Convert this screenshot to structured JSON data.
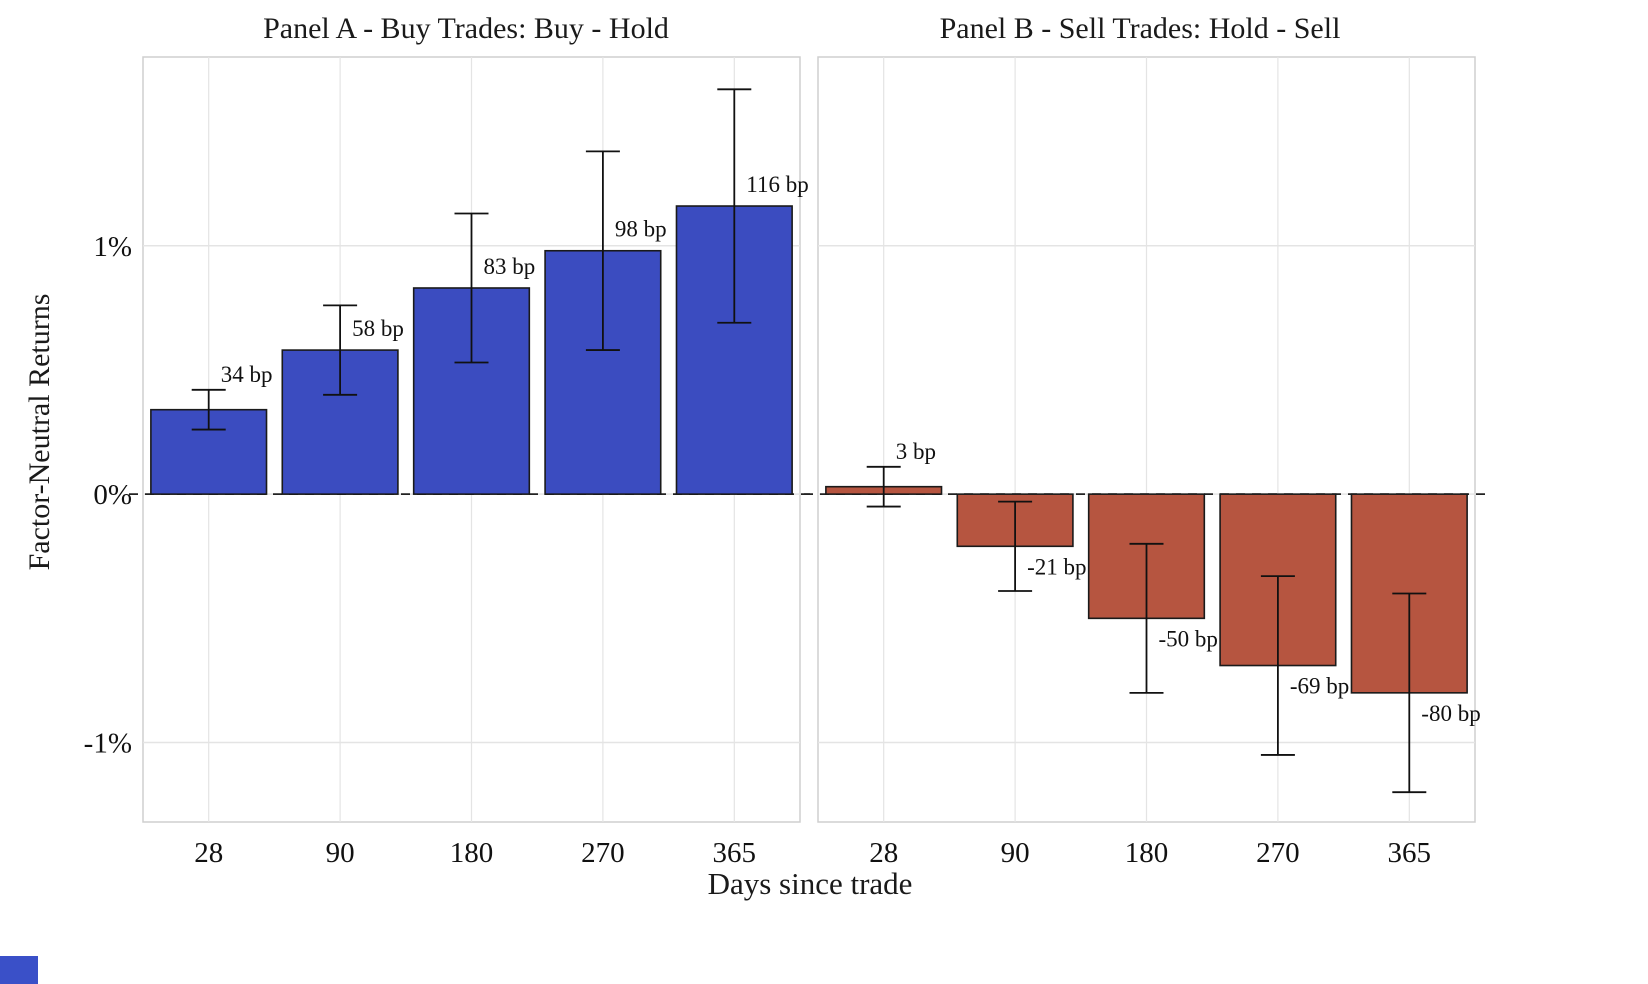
{
  "chart_data": {
    "type": "bar",
    "title": "",
    "xlabel": "Days since trade",
    "ylabel": "Factor-Neutral Returns",
    "ylim_bp": [
      -132,
      176
    ],
    "grid": true,
    "yticks": [
      {
        "value_bp": 100,
        "label": "1%"
      },
      {
        "value_bp": 0,
        "label": "0%"
      },
      {
        "value_bp": -100,
        "label": "-1%"
      }
    ],
    "categories": [
      "28",
      "90",
      "180",
      "270",
      "365"
    ],
    "panels": [
      {
        "title": "Panel A - Buy Trades: Buy - Hold",
        "color": "#3b4cc0",
        "categories": [
          "28",
          "90",
          "180",
          "270",
          "365"
        ],
        "values_bp": [
          34,
          58,
          83,
          98,
          116
        ],
        "error_low_bp": [
          26,
          40,
          53,
          58,
          69
        ],
        "error_high_bp": [
          42,
          76,
          113,
          138,
          163
        ],
        "labels": [
          "34 bp",
          "58 bp",
          "83 bp",
          "98 bp",
          "116 bp"
        ]
      },
      {
        "title": "Panel B - Sell Trades: Hold - Sell",
        "color": "#b65540",
        "categories": [
          "28",
          "90",
          "180",
          "270",
          "365"
        ],
        "values_bp": [
          3,
          -21,
          -50,
          -69,
          -80
        ],
        "error_low_bp": [
          -5,
          -39,
          -80,
          -105,
          -120
        ],
        "error_high_bp": [
          11,
          -3,
          -20,
          -33,
          -40
        ],
        "labels": [
          "3 bp",
          "-21 bp",
          "-50 bp",
          "-69 bp",
          "-80 bp"
        ]
      }
    ],
    "colors": {
      "bar_buy": "#3b4cc0",
      "bar_sell": "#b65540",
      "grid": "#e4e4e4",
      "panel_border": "#cfcfcf",
      "zero_line": "#222222",
      "text": "#111111",
      "corner_artifact": "#3a50c8"
    }
  }
}
